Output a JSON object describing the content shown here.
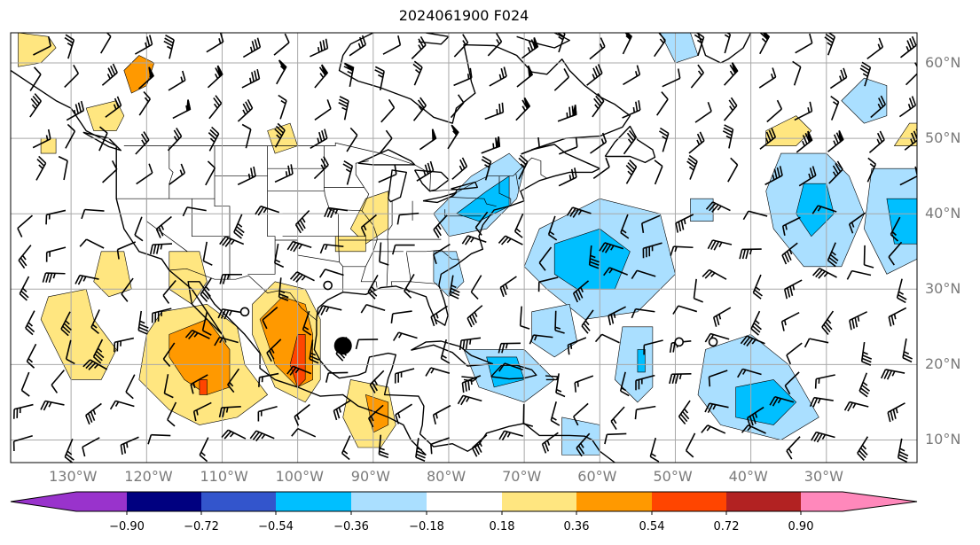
{
  "title": "2024061900 F024",
  "map": {
    "projection": "plate-carree",
    "lon_range": [
      -138,
      -18
    ],
    "lat_range": [
      7,
      64
    ],
    "grid": true
  },
  "latitude_labels": [
    "60°N",
    "50°N",
    "40°N",
    "30°N",
    "20°N",
    "10°N"
  ],
  "longitude_labels": [
    "130°W",
    "120°W",
    "110°W",
    "100°W",
    "90°W",
    "80°W",
    "70°W",
    "60°W",
    "50°W",
    "40°W",
    "30°W"
  ],
  "colorbar": {
    "colors": [
      "#9933cc",
      "#000080",
      "#3355cc",
      "#00bfff",
      "#aadfff",
      "#ffffff",
      "#ffe680",
      "#ff9900",
      "#ff4500",
      "#b22222",
      "#ff88bb"
    ],
    "ticks": [
      "−0.90",
      "−0.72",
      "−0.54",
      "−0.36",
      "−0.18",
      "0.18",
      "0.36",
      "0.54",
      "0.72",
      "0.90"
    ],
    "extend": "both"
  },
  "markers": [
    {
      "name": "large-filled-dot",
      "lon": -94,
      "lat": 22.5
    },
    {
      "name": "open-circle",
      "lon": -107,
      "lat": 27
    },
    {
      "name": "open-circle",
      "lon": -96,
      "lat": 30.5
    },
    {
      "name": "open-circle",
      "lon": -49.5,
      "lat": 23
    },
    {
      "name": "open-circle",
      "lon": -45,
      "lat": 23
    }
  ]
}
